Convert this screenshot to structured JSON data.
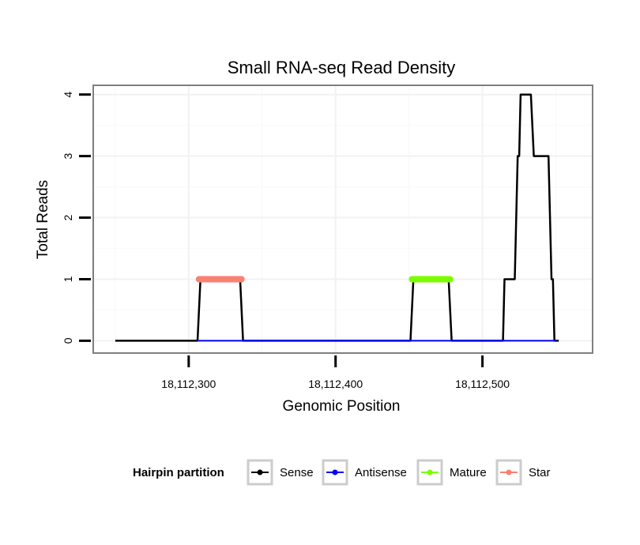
{
  "chart_data": {
    "type": "line",
    "title": "Small RNA-seq Read Density",
    "xlabel": "Genomic Position",
    "ylabel": "Total Reads",
    "xlim": [
      18112235,
      18112575
    ],
    "ylim": [
      -0.2,
      4.15
    ],
    "x_ticks": [
      18112300,
      18112400,
      18112500
    ],
    "x_tick_labels": [
      "18,112,300",
      "18,112,400",
      "18,112,500"
    ],
    "y_ticks": [
      0,
      1,
      2,
      3,
      4
    ],
    "y_tick_labels": [
      "0",
      "1",
      "2",
      "3",
      "4"
    ],
    "grid": true,
    "legend_position": "bottom",
    "legend_title": "Hairpin partition",
    "series": [
      {
        "name": "Sense",
        "color": "#000000",
        "x": [
          18112250,
          18112306,
          18112308,
          18112335,
          18112337,
          18112451,
          18112453,
          18112477,
          18112479,
          18112514,
          18112515,
          18112522,
          18112524,
          18112525,
          18112526,
          18112533,
          18112535,
          18112545,
          18112547,
          18112548,
          18112549,
          18112552
        ],
        "values": [
          0,
          0,
          1,
          1,
          0,
          0,
          1,
          1,
          0,
          0,
          1,
          1,
          3,
          3,
          4,
          4,
          3,
          3,
          1,
          1,
          0,
          0
        ]
      },
      {
        "name": "Antisense",
        "color": "#0000ff",
        "x": [
          18112306,
          18112337,
          18112451,
          18112479,
          18112514,
          18112550
        ],
        "values": [
          0,
          0,
          0,
          0,
          0,
          0
        ]
      },
      {
        "name": "Mature",
        "color": "#7cfc00",
        "x": [
          18112452,
          18112478
        ],
        "values": [
          1,
          1
        ]
      },
      {
        "name": "Star",
        "color": "#fa8072",
        "x": [
          18112307,
          18112336
        ],
        "values": [
          1,
          1
        ]
      }
    ]
  }
}
